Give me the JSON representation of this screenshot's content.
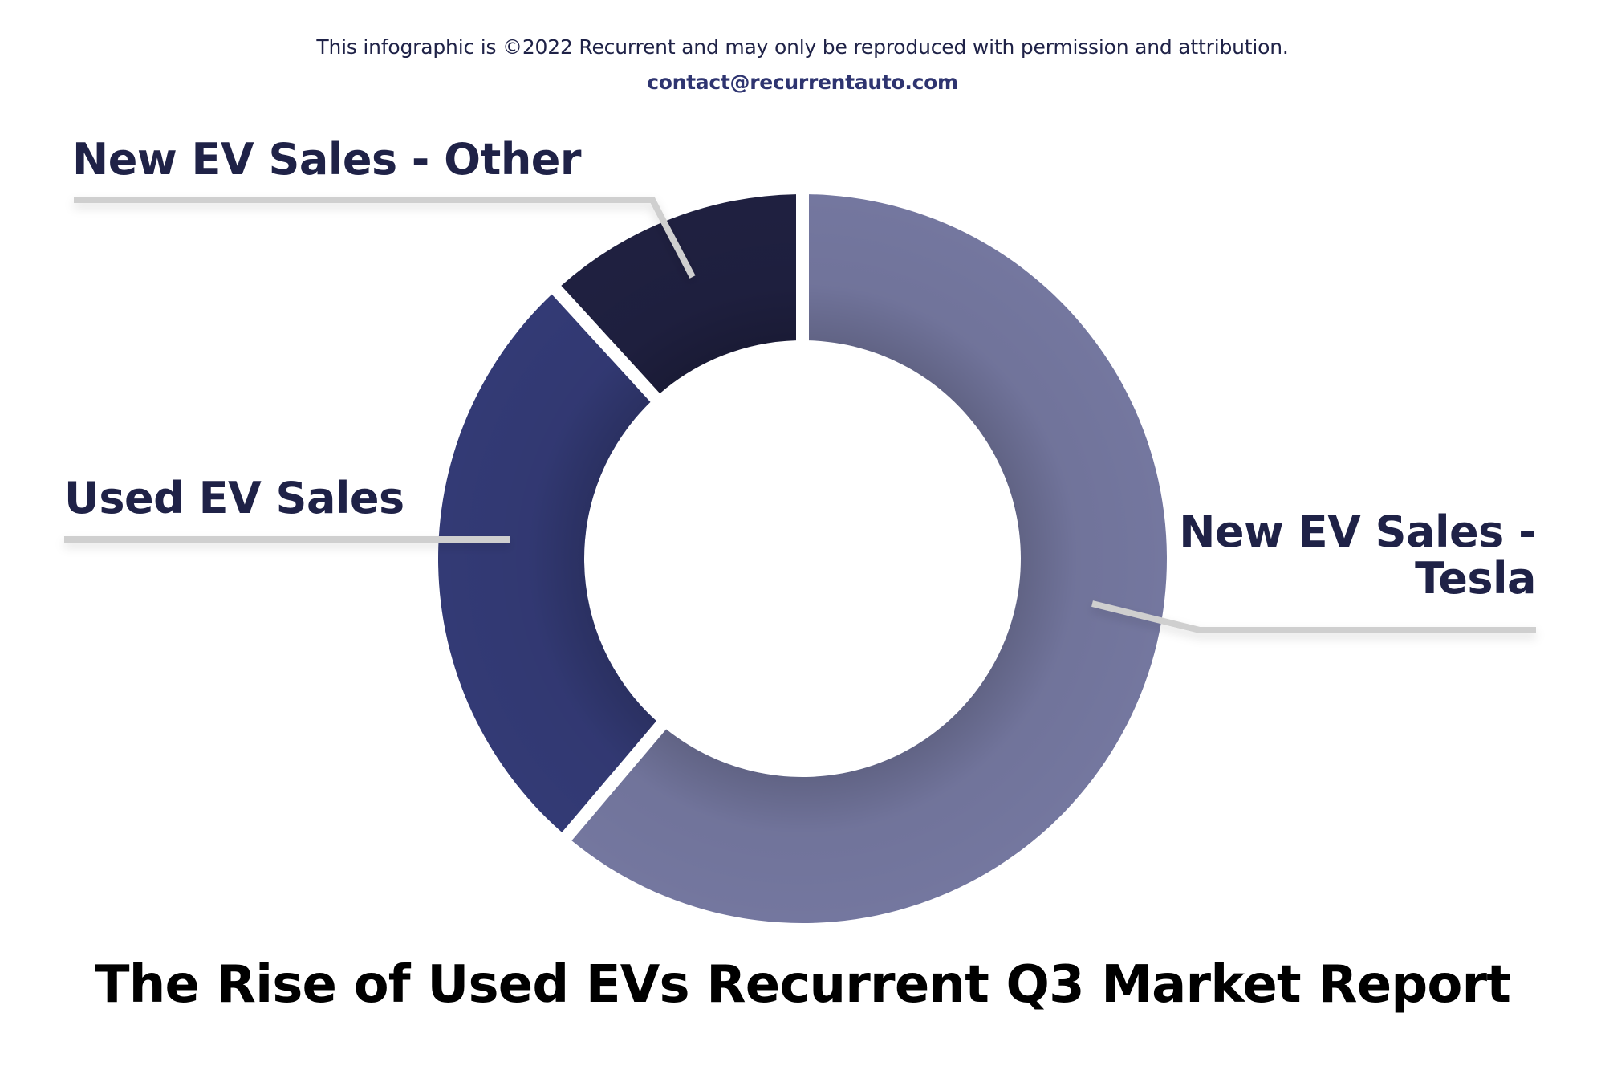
{
  "header": {
    "copyright": "This infographic is ©2022 Recurrent and may only be reproduced with permission and attribution.",
    "contact": "contact@recurrentauto.com"
  },
  "colors": {
    "new_ev_tesla": "#74779f",
    "used_ev": "#333a75",
    "new_ev_other": "#1f2040",
    "label_text": "#1f2247",
    "leader_line": "#cfcfcf",
    "contact_text": "#2e3470"
  },
  "labels": {
    "other": "New EV Sales - Other",
    "used": "Used EV Sales",
    "tesla_line1": "New EV Sales -",
    "tesla_line2": "Tesla"
  },
  "footer": {
    "title": "The Rise of Used EVs Recurrent Q3 Market Report"
  },
  "chart_data": {
    "type": "pie",
    "subtype": "donut",
    "title": "The Rise of Used EVs Recurrent Q3 Market Report",
    "categories": [
      "New EV Sales - Tesla",
      "Used EV Sales",
      "New EV Sales - Other"
    ],
    "values": [
      61.2,
      27.0,
      11.8
    ],
    "value_unit": "percent (estimated from slice angles, no data labels shown)",
    "colors": [
      "#74779f",
      "#333a75",
      "#1f2040"
    ],
    "start_angle_deg": 0,
    "direction": "clockwise",
    "legend": "none (leader-line callout labels)",
    "xlabel": "",
    "ylabel": ""
  }
}
